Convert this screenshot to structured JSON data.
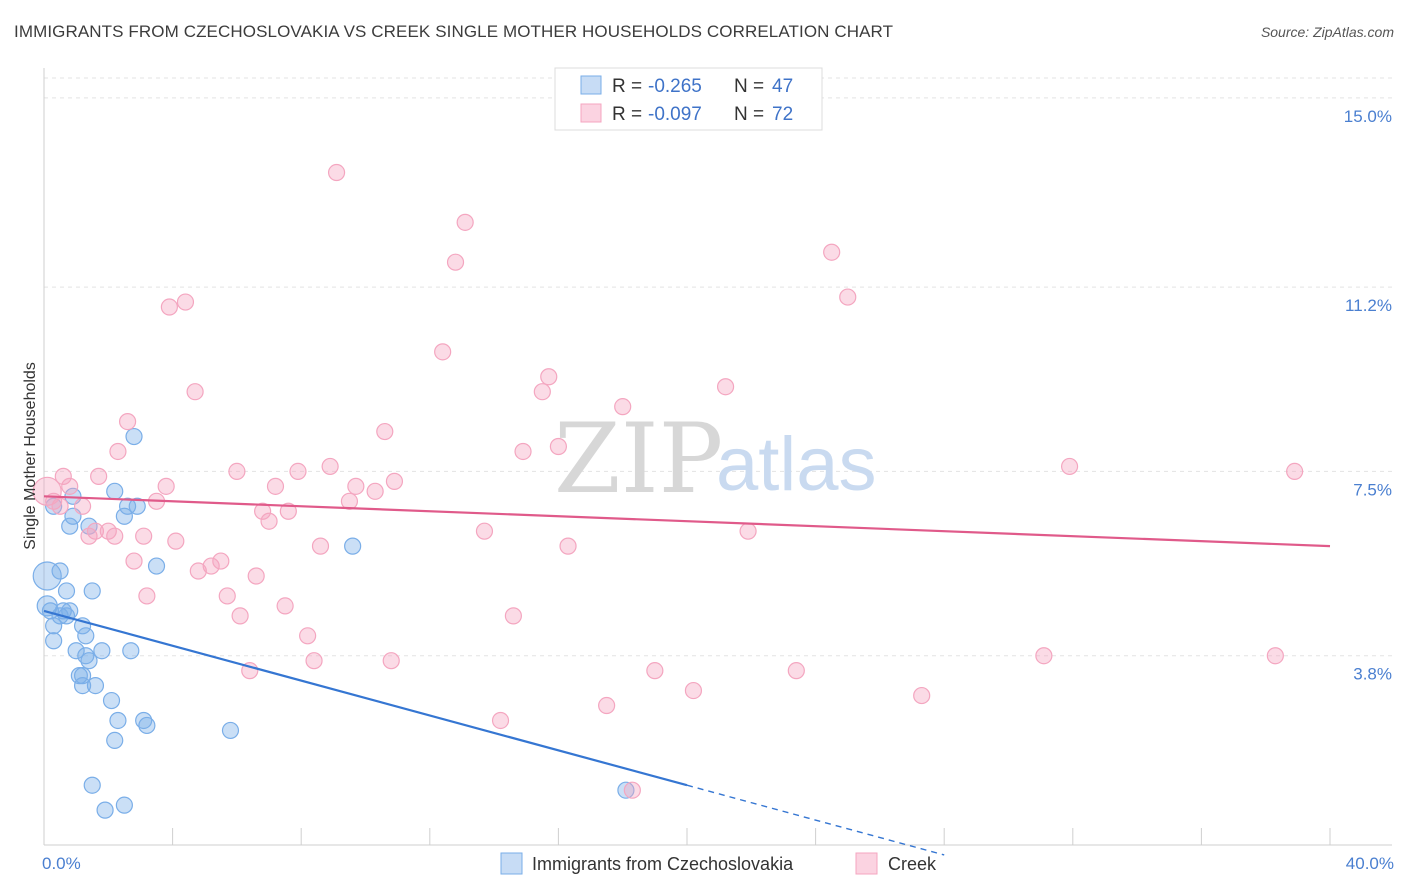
{
  "title": "IMMIGRANTS FROM CZECHOSLOVAKIA VS CREEK SINGLE MOTHER HOUSEHOLDS CORRELATION CHART",
  "source": "Source: ZipAtlas.com",
  "watermark": {
    "zip": "ZIP",
    "atlas": "atlas"
  },
  "chart_data": {
    "type": "scatter",
    "ylabel": "Single Mother Households",
    "xlim": [
      0,
      40
    ],
    "ylim": [
      0,
      16
    ],
    "x_tick_labels": [
      {
        "value": 0,
        "label": "0.0%"
      },
      {
        "value": 40,
        "label": "40.0%"
      }
    ],
    "y_ticks": [
      {
        "value": 3.8,
        "label": "3.8%"
      },
      {
        "value": 7.5,
        "label": "7.5%"
      },
      {
        "value": 11.2,
        "label": "11.2%"
      },
      {
        "value": 15.0,
        "label": "15.0%"
      }
    ],
    "grid": true,
    "legend": [
      {
        "r_label": "R =",
        "r": "-0.265",
        "n_label": "N =",
        "n": "47"
      },
      {
        "r_label": "R =",
        "r": "-0.097",
        "n_label": "N =",
        "n": "72"
      }
    ],
    "series": [
      {
        "name": "Immigrants from Czechoslovakia",
        "color": "#7aaee8",
        "line_color": "#3576d2",
        "trend": {
          "x0": 0,
          "y0": 4.7,
          "x1": 20,
          "y1": 1.2,
          "dash_to_x": 28,
          "dash_to_y": -0.2
        },
        "points": [
          [
            0.1,
            5.4,
            14
          ],
          [
            0.1,
            4.8,
            10
          ],
          [
            0.2,
            4.7,
            8
          ],
          [
            0.3,
            4.4,
            8
          ],
          [
            0.3,
            4.1,
            8
          ],
          [
            0.3,
            6.8,
            8
          ],
          [
            0.5,
            5.5,
            8
          ],
          [
            0.5,
            4.6,
            8
          ],
          [
            0.6,
            4.7,
            8
          ],
          [
            0.7,
            5.1,
            8
          ],
          [
            0.7,
            4.6,
            8
          ],
          [
            0.8,
            6.4,
            8
          ],
          [
            0.8,
            4.7,
            8
          ],
          [
            0.9,
            6.6,
            8
          ],
          [
            0.9,
            7.0,
            8
          ],
          [
            1.0,
            3.9,
            8
          ],
          [
            1.1,
            3.4,
            8
          ],
          [
            1.2,
            3.2,
            8
          ],
          [
            1.2,
            3.4,
            8
          ],
          [
            1.2,
            4.4,
            8
          ],
          [
            1.3,
            3.8,
            8
          ],
          [
            1.3,
            4.2,
            8
          ],
          [
            1.4,
            6.4,
            8
          ],
          [
            1.4,
            3.7,
            8
          ],
          [
            1.5,
            5.1,
            8
          ],
          [
            1.5,
            1.2,
            8
          ],
          [
            1.6,
            3.2,
            8
          ],
          [
            1.8,
            3.9,
            8
          ],
          [
            1.9,
            0.7,
            8
          ],
          [
            2.1,
            2.9,
            8
          ],
          [
            2.2,
            2.1,
            8
          ],
          [
            2.2,
            7.1,
            8
          ],
          [
            2.3,
            2.5,
            8
          ],
          [
            2.5,
            6.6,
            8
          ],
          [
            2.5,
            0.8,
            8
          ],
          [
            2.6,
            6.8,
            8
          ],
          [
            2.7,
            3.9,
            8
          ],
          [
            2.8,
            8.2,
            8
          ],
          [
            2.9,
            6.8,
            8
          ],
          [
            3.1,
            2.5,
            8
          ],
          [
            3.2,
            2.4,
            8
          ],
          [
            3.5,
            5.6,
            8
          ],
          [
            5.8,
            2.3,
            8
          ],
          [
            9.6,
            6.0,
            8
          ],
          [
            18.1,
            1.1,
            8
          ]
        ]
      },
      {
        "name": "Creek",
        "color": "#f4a6c0",
        "line_color": "#e05a8a",
        "trend": {
          "x0": 0,
          "y0": 7.0,
          "x1": 40,
          "y1": 6.0
        },
        "points": [
          [
            0.1,
            7.1,
            14
          ],
          [
            0.3,
            6.9,
            8
          ],
          [
            0.5,
            6.8,
            8
          ],
          [
            0.6,
            7.4,
            8
          ],
          [
            0.8,
            7.2,
            8
          ],
          [
            1.2,
            6.8,
            8
          ],
          [
            1.4,
            6.2,
            8
          ],
          [
            1.6,
            6.3,
            8
          ],
          [
            1.7,
            7.4,
            8
          ],
          [
            2.0,
            6.3,
            8
          ],
          [
            2.2,
            6.2,
            8
          ],
          [
            2.3,
            7.9,
            8
          ],
          [
            2.6,
            8.5,
            8
          ],
          [
            2.8,
            5.7,
            8
          ],
          [
            3.1,
            6.2,
            8
          ],
          [
            3.2,
            5.0,
            8
          ],
          [
            3.5,
            6.9,
            8
          ],
          [
            3.8,
            7.2,
            8
          ],
          [
            3.9,
            10.8,
            8
          ],
          [
            4.1,
            6.1,
            8
          ],
          [
            4.4,
            10.9,
            8
          ],
          [
            4.7,
            9.1,
            8
          ],
          [
            4.8,
            5.5,
            8
          ],
          [
            5.2,
            5.6,
            8
          ],
          [
            5.5,
            5.7,
            8
          ],
          [
            5.7,
            5.0,
            8
          ],
          [
            6.0,
            7.5,
            8
          ],
          [
            6.1,
            4.6,
            8
          ],
          [
            6.4,
            3.5,
            8
          ],
          [
            6.6,
            5.4,
            8
          ],
          [
            6.8,
            6.7,
            8
          ],
          [
            7.0,
            6.5,
            8
          ],
          [
            7.2,
            7.2,
            8
          ],
          [
            7.5,
            4.8,
            8
          ],
          [
            7.6,
            6.7,
            8
          ],
          [
            7.9,
            7.5,
            8
          ],
          [
            8.2,
            4.2,
            8
          ],
          [
            8.4,
            3.7,
            8
          ],
          [
            8.6,
            6.0,
            8
          ],
          [
            8.9,
            7.6,
            8
          ],
          [
            9.1,
            13.5,
            8
          ],
          [
            9.5,
            6.9,
            8
          ],
          [
            9.7,
            7.2,
            8
          ],
          [
            10.3,
            7.1,
            8
          ],
          [
            10.6,
            8.3,
            8
          ],
          [
            10.8,
            3.7,
            8
          ],
          [
            10.9,
            7.3,
            8
          ],
          [
            12.4,
            9.9,
            8
          ],
          [
            12.8,
            11.7,
            8
          ],
          [
            13.1,
            12.5,
            8
          ],
          [
            13.7,
            6.3,
            8
          ],
          [
            14.2,
            2.5,
            8
          ],
          [
            14.6,
            4.6,
            8
          ],
          [
            14.9,
            7.9,
            8
          ],
          [
            15.5,
            9.1,
            8
          ],
          [
            15.7,
            9.4,
            8
          ],
          [
            16.0,
            8.0,
            8
          ],
          [
            16.3,
            6.0,
            8
          ],
          [
            17.5,
            2.8,
            8
          ],
          [
            18.0,
            8.8,
            8
          ],
          [
            18.3,
            1.1,
            8
          ],
          [
            19.0,
            3.5,
            8
          ],
          [
            20.2,
            3.1,
            8
          ],
          [
            21.2,
            9.2,
            8
          ],
          [
            21.9,
            6.3,
            8
          ],
          [
            23.4,
            3.5,
            8
          ],
          [
            24.5,
            11.9,
            8
          ],
          [
            25.0,
            11.0,
            8
          ],
          [
            27.3,
            3.0,
            8
          ],
          [
            31.1,
            3.8,
            8
          ],
          [
            31.9,
            7.6,
            8
          ],
          [
            38.3,
            3.8,
            8
          ],
          [
            38.9,
            7.5,
            8
          ]
        ]
      }
    ]
  }
}
